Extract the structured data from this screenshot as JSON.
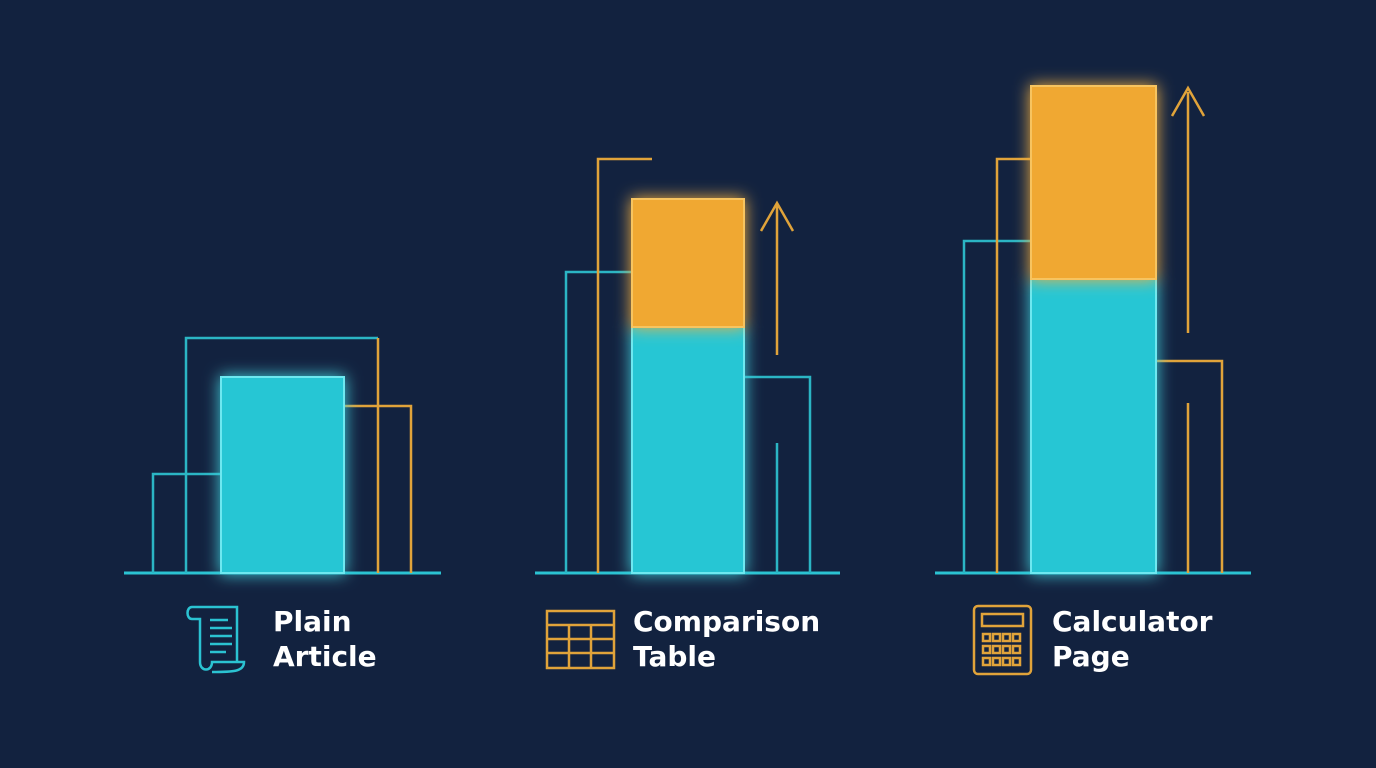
{
  "chart_data": {
    "type": "stacked-bar",
    "categories": [
      "Plain Article",
      "Comparison Table",
      "Calculator Page"
    ],
    "series": [
      {
        "color": "#25c6d4",
        "values": [
          196,
          246,
          294
        ]
      },
      {
        "color": "#f0a832",
        "values": [
          null,
          128,
          193
        ]
      }
    ],
    "ylim": [
      0,
      573
    ]
  }
}
